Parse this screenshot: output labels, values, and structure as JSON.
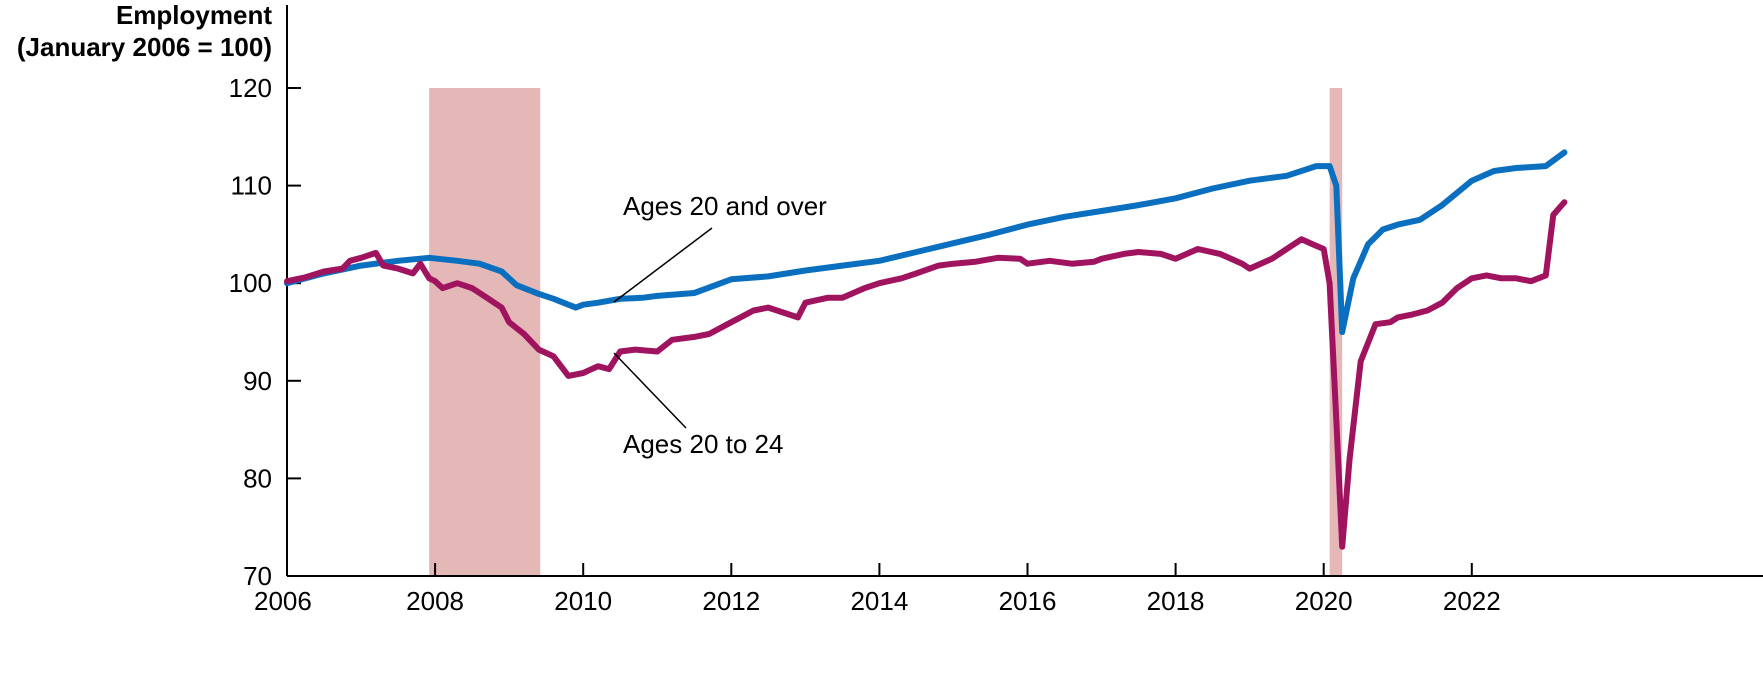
{
  "chart_data": {
    "type": "line",
    "ylabel": [
      "Employment",
      "(January 2006 = 100)"
    ],
    "xlim": [
      2006,
      2023.25
    ],
    "ylim": [
      70,
      120
    ],
    "xticks": [
      "2006",
      "2008",
      "2010",
      "2012",
      "2014",
      "2016",
      "2018",
      "2020",
      "2022"
    ],
    "yticks": [
      "70",
      "80",
      "90",
      "100",
      "110",
      "120"
    ],
    "recessions": [
      [
        2007.92,
        2009.42
      ],
      [
        2020.08,
        2020.25
      ]
    ],
    "annotations": [
      {
        "text": "Ages 20 and over",
        "series": "Ages 20 and over"
      },
      {
        "text": "Ages 20 to 24",
        "series": "Ages 20 to 24"
      }
    ],
    "colors": {
      "ages_20_over": "#0b6fc0",
      "ages_20_24": "#a0145f",
      "recession": "#e5b8b8"
    },
    "series": [
      {
        "name": "Ages 20 and over",
        "x": [
          2006.0,
          2006.5,
          2007.0,
          2007.5,
          2007.92,
          2008.3,
          2008.6,
          2008.9,
          2009.1,
          2009.4,
          2009.6,
          2009.8,
          2009.9,
          2010.0,
          2010.2,
          2010.5,
          2010.8,
          2011.0,
          2011.5,
          2012.0,
          2012.5,
          2013.0,
          2013.5,
          2014.0,
          2014.5,
          2015.0,
          2015.5,
          2016.0,
          2016.5,
          2017.0,
          2017.5,
          2018.0,
          2018.5,
          2019.0,
          2019.5,
          2019.9,
          2020.08,
          2020.17,
          2020.25,
          2020.4,
          2020.6,
          2020.8,
          2021.0,
          2021.3,
          2021.6,
          2022.0,
          2022.3,
          2022.6,
          2023.0,
          2023.25
        ],
        "values": [
          100.0,
          101.0,
          101.8,
          102.3,
          102.6,
          102.3,
          102.0,
          101.2,
          99.8,
          98.9,
          98.4,
          97.8,
          97.5,
          97.8,
          98.0,
          98.4,
          98.5,
          98.7,
          99.0,
          100.4,
          100.7,
          101.3,
          101.8,
          102.3,
          103.2,
          104.1,
          105.0,
          106.0,
          106.8,
          107.4,
          108.0,
          108.7,
          109.7,
          110.5,
          111.0,
          112.0,
          112.0,
          110.0,
          95.0,
          100.5,
          104.0,
          105.5,
          106.0,
          106.5,
          108.0,
          110.5,
          111.5,
          111.8,
          112.0,
          113.4
        ]
      },
      {
        "name": "Ages 20 to 24",
        "x": [
          2006.0,
          2006.25,
          2006.5,
          2006.75,
          2006.85,
          2007.0,
          2007.2,
          2007.3,
          2007.5,
          2007.7,
          2007.8,
          2007.92,
          2008.0,
          2008.1,
          2008.3,
          2008.5,
          2008.7,
          2008.9,
          2009.0,
          2009.2,
          2009.4,
          2009.6,
          2009.8,
          2010.0,
          2010.2,
          2010.35,
          2010.5,
          2010.7,
          2011.0,
          2011.2,
          2011.5,
          2011.7,
          2012.0,
          2012.3,
          2012.5,
          2012.7,
          2012.9,
          2013.0,
          2013.3,
          2013.5,
          2013.8,
          2014.0,
          2014.3,
          2014.5,
          2014.8,
          2015.0,
          2015.3,
          2015.6,
          2015.9,
          2016.0,
          2016.3,
          2016.6,
          2016.9,
          2017.0,
          2017.3,
          2017.5,
          2017.8,
          2018.0,
          2018.3,
          2018.6,
          2018.9,
          2019.0,
          2019.3,
          2019.5,
          2019.7,
          2019.85,
          2020.0,
          2020.08,
          2020.17,
          2020.25,
          2020.35,
          2020.5,
          2020.7,
          2020.9,
          2021.0,
          2021.2,
          2021.4,
          2021.6,
          2021.8,
          2022.0,
          2022.2,
          2022.4,
          2022.6,
          2022.8,
          2023.0,
          2023.1,
          2023.25
        ],
        "values": [
          100.2,
          100.6,
          101.2,
          101.5,
          102.3,
          102.6,
          103.1,
          101.8,
          101.5,
          101.0,
          102.0,
          100.5,
          100.2,
          99.5,
          100.0,
          99.5,
          98.5,
          97.5,
          96.0,
          94.8,
          93.2,
          92.5,
          90.5,
          90.8,
          91.5,
          91.2,
          93.0,
          93.2,
          93.0,
          94.2,
          94.5,
          94.8,
          96.0,
          97.2,
          97.5,
          97.0,
          96.5,
          98.0,
          98.5,
          98.5,
          99.5,
          100.0,
          100.5,
          101.0,
          101.8,
          102.0,
          102.2,
          102.6,
          102.5,
          102.0,
          102.3,
          102.0,
          102.2,
          102.5,
          103.0,
          103.2,
          103.0,
          102.5,
          103.5,
          103.0,
          102.0,
          101.5,
          102.5,
          103.5,
          104.5,
          104.0,
          103.5,
          100.0,
          86.0,
          73.0,
          82.0,
          92.0,
          95.8,
          96.0,
          96.5,
          96.8,
          97.2,
          98.0,
          99.5,
          100.5,
          100.8,
          100.5,
          100.5,
          100.2,
          100.8,
          107.0,
          108.3
        ]
      }
    ]
  }
}
